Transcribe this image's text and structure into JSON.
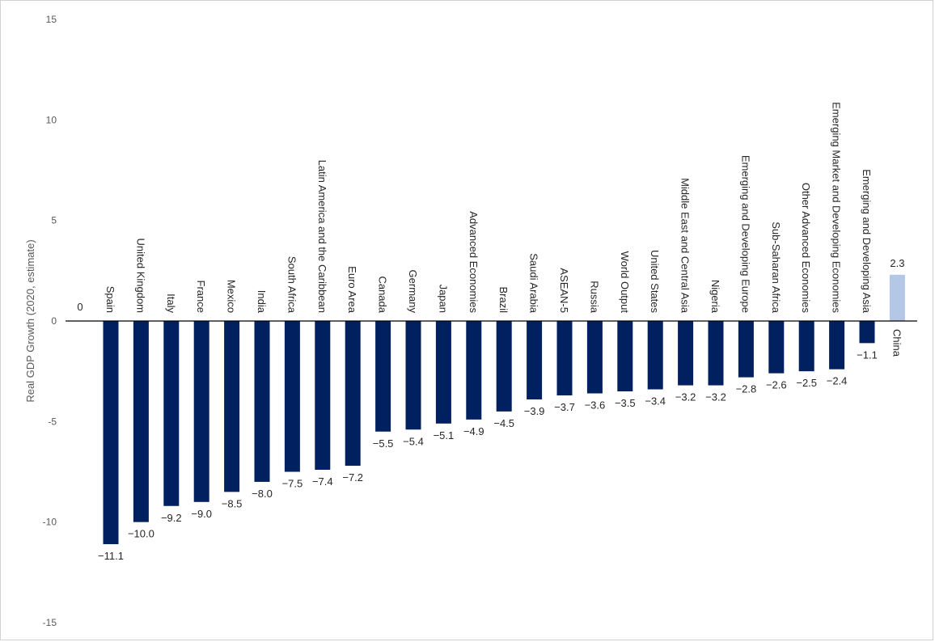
{
  "chart_data": {
    "type": "bar",
    "ylabel": "Real GDP Growth (2020, estimate)",
    "ylim": [
      -15,
      15
    ],
    "yticks": [
      15,
      10,
      5,
      0,
      -5,
      -10,
      -15
    ],
    "zero_label": "0",
    "categories": [
      "Spain",
      "United Kingdom",
      "Italy",
      "France",
      "Mexico",
      "India",
      "South Africa",
      "Latin America and the Caribbean",
      "Euro Area",
      "Canada",
      "Germany",
      "Japan",
      "Advanced Economies",
      "Brazil",
      "Saudi Arabia",
      "ASEAN-5",
      "Russia",
      "World Output",
      "United States",
      "Middle East and Central Asia",
      "Nigeria",
      "Emerging and Developing Europe",
      "Sub-Saharan Africa",
      "Other Advanced Economies",
      "Emerging Market and Developing Economies",
      "Emerging and Developing Asia",
      "China"
    ],
    "values": [
      -11.1,
      -10.0,
      -9.2,
      -9.0,
      -8.5,
      -8.0,
      -7.5,
      -7.4,
      -7.2,
      -5.5,
      -5.4,
      -5.1,
      -4.9,
      -4.5,
      -3.9,
      -3.7,
      -3.6,
      -3.5,
      -3.4,
      -3.2,
      -3.2,
      -2.8,
      -2.6,
      -2.5,
      -2.4,
      -1.1,
      2.3
    ],
    "value_labels": [
      "−11.1",
      "−10.0",
      "−9.2",
      "−9.0",
      "−8.5",
      "−8.0",
      "−7.5",
      "−7.4",
      "−7.2",
      "−5.5",
      "−5.4",
      "−5.1",
      "−4.9",
      "−4.5",
      "−3.9",
      "−3.7",
      "−3.6",
      "−3.5",
      "−3.4",
      "−3.2",
      "−3.2",
      "−2.8",
      "−2.6",
      "−2.5",
      "−2.4",
      "−1.1",
      "2.3"
    ],
    "colors": {
      "negative": "#002060",
      "positive": "#b4c7e7",
      "axis": "#000000"
    },
    "grid": false,
    "legend": "none"
  }
}
